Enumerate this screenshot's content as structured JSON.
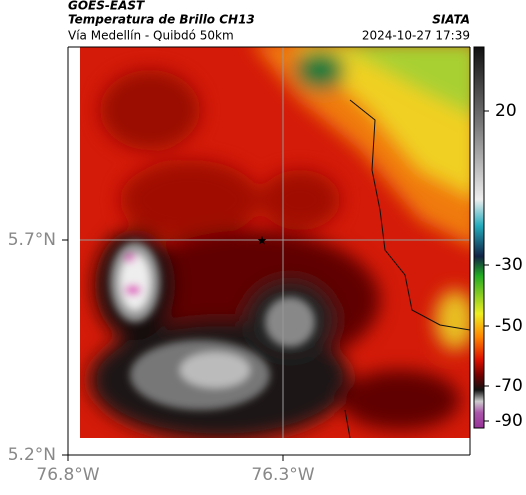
{
  "header": {
    "source": "GOES-EAST",
    "title": "Temperatura de Brillo CH13",
    "brand": "SIATA",
    "subtitle": "Vía Medellín - Quibdó 50km",
    "datetime": "2024-10-27 17:39"
  },
  "axes": {
    "lat_labels": [
      "5.7°N",
      "5.2°N"
    ],
    "lon_labels": [
      "76.8°W",
      "76.3°W"
    ]
  },
  "colorbar": {
    "labels": [
      "20",
      "-30",
      "-50",
      "-70",
      "-90"
    ]
  }
}
